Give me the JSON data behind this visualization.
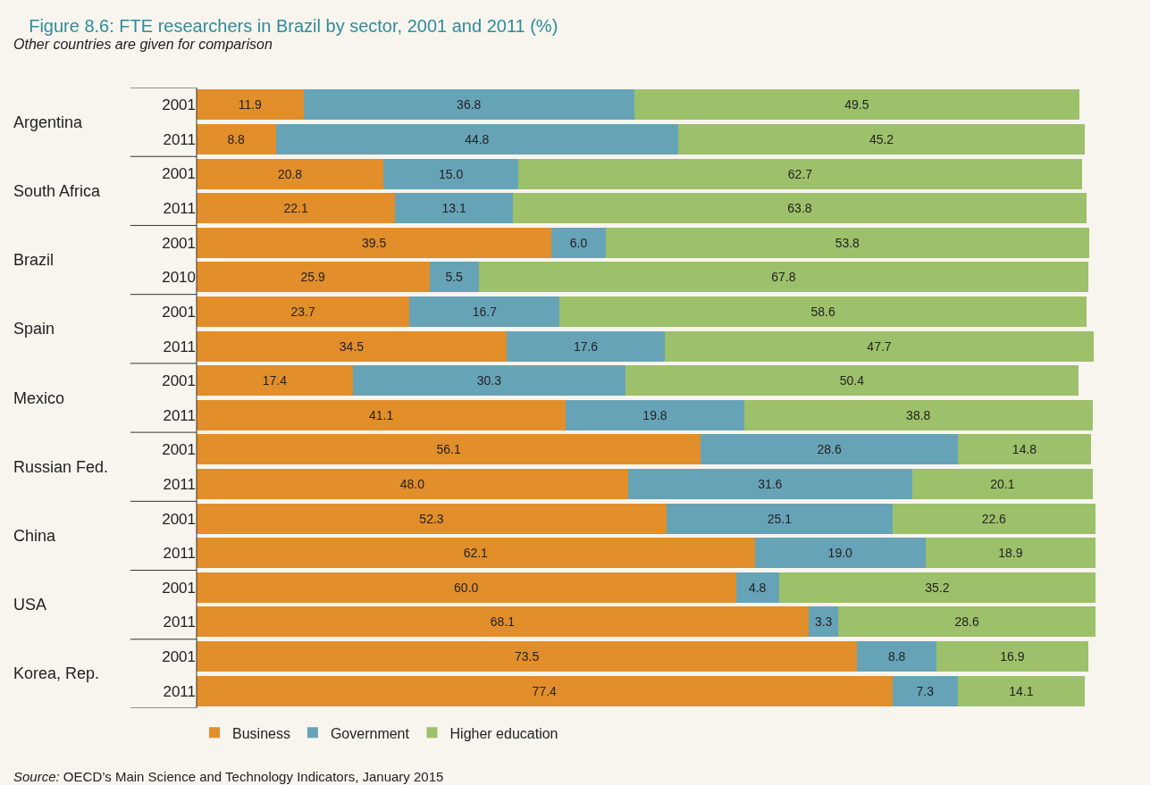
{
  "chart_data": {
    "type": "bar",
    "orientation": "horizontal",
    "stacked": true,
    "legend": "bottom",
    "grid": false,
    "title": "Figure 8.6: FTE researchers in Brazil by sector, 2001 and 2011 (%)",
    "subtitle": "Other countries are given for comparison",
    "categories": [
      "2001",
      "2011",
      "2001",
      "2011",
      "2001",
      "2010",
      "2001",
      "2011",
      "2001",
      "2011",
      "2001",
      "2011",
      "2001",
      "2011",
      "2001",
      "2011",
      "2001",
      "2011"
    ],
    "series": [
      {
        "name": "Business",
        "color": "#e28e2a",
        "values": [
          11.9,
          8.8,
          20.8,
          22.1,
          39.5,
          25.9,
          23.7,
          34.5,
          17.4,
          41.1,
          56.1,
          48.0,
          52.3,
          62.1,
          60.0,
          68.1,
          73.5,
          77.4
        ],
        "value_labels": [
          "11.9",
          "8.8",
          "20.8",
          "22.1",
          "39.5",
          "25.9",
          "23.7",
          "34.5",
          "17.4",
          "41.1",
          "56.1",
          "48.0",
          "52.3",
          "62.1",
          "60.0",
          "68.1",
          "73.5",
          "77.4"
        ]
      },
      {
        "name": "Government",
        "color": "#67a3b7",
        "values": [
          36.8,
          44.8,
          15.0,
          13.1,
          6.0,
          5.5,
          16.7,
          17.6,
          30.3,
          19.8,
          28.6,
          31.6,
          25.1,
          19.0,
          4.8,
          3.3,
          8.8,
          7.3
        ],
        "value_labels": [
          "36.8",
          "44.8",
          "15.0",
          "13.1",
          "6.0",
          "5.5",
          "16.7",
          "17.6",
          "30.3",
          "19.8",
          "28.6",
          "31.6",
          "25.1",
          "19.0",
          "4.8",
          "3.3",
          "8.8",
          "7.3"
        ]
      },
      {
        "name": "Higher education",
        "color": "#9dc06a",
        "values": [
          49.5,
          45.2,
          62.7,
          63.8,
          53.8,
          67.8,
          58.6,
          47.7,
          50.4,
          38.8,
          14.8,
          20.1,
          22.6,
          18.9,
          35.2,
          28.6,
          16.9,
          14.1
        ],
        "value_labels": [
          "49.5",
          "45.2",
          "62.7",
          "63.8",
          "53.8",
          "67.8",
          "58.6",
          "47.7",
          "50.4",
          "38.8",
          "14.8",
          "20.1",
          "22.6",
          "18.9",
          "35.2",
          "28.6",
          "16.9",
          "14.1"
        ]
      }
    ],
    "annotations": [
      "Argentina",
      "South Africa",
      "Brazil",
      "Spain",
      "Mexico",
      "Russian Fed.",
      "China",
      "USA",
      "Korea, Rep.",
      "Source: OECD’s Main Science and Technology Indicators, January 2015"
    ]
  }
}
